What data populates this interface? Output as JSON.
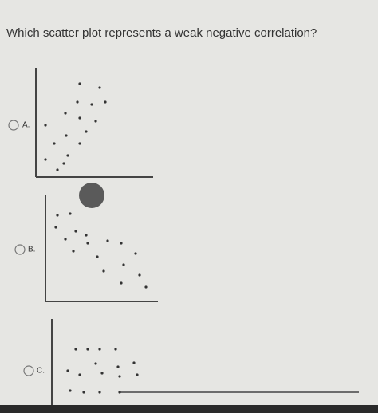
{
  "question": "Which scatter plot represents a weak negative correlation?",
  "options": [
    {
      "label": "A."
    },
    {
      "label": "B."
    },
    {
      "label": "C."
    }
  ]
}
